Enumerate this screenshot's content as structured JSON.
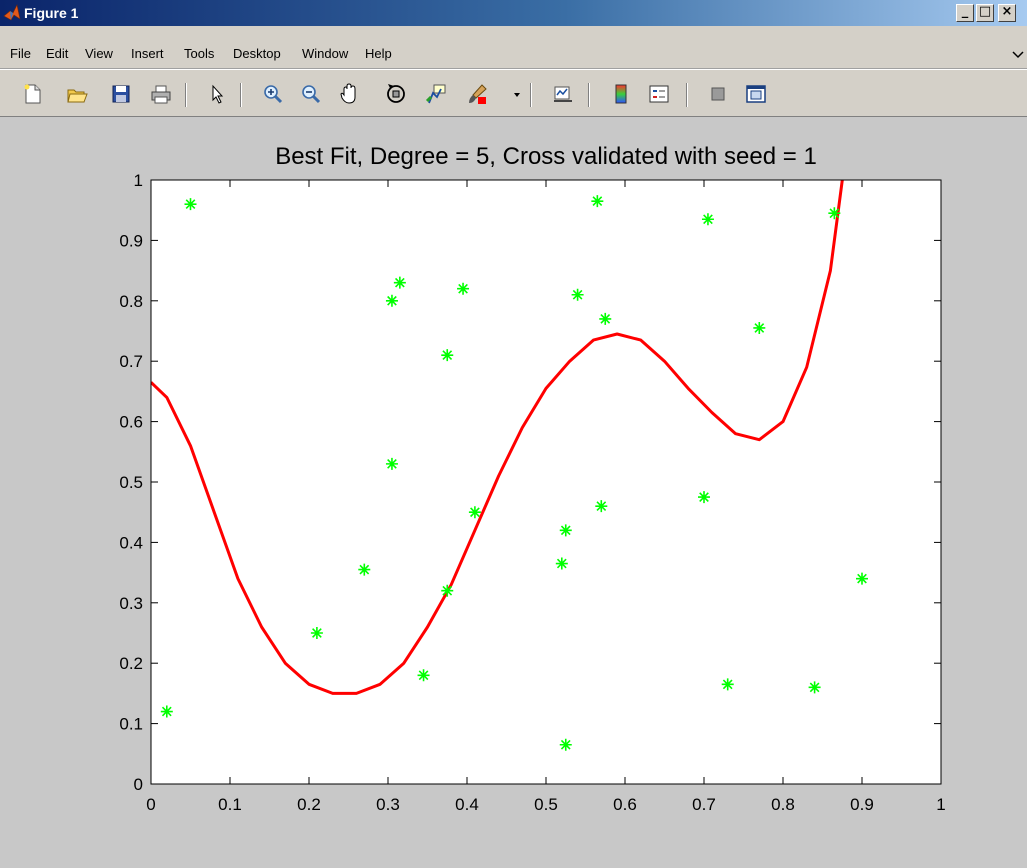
{
  "window": {
    "title": "Figure 1",
    "controls": {
      "minimize": "_",
      "maximize": "□",
      "close": "×"
    }
  },
  "menu": {
    "items": [
      {
        "label": "File"
      },
      {
        "label": "Edit"
      },
      {
        "label": "View"
      },
      {
        "label": "Insert"
      },
      {
        "label": "Tools"
      },
      {
        "label": "Desktop"
      },
      {
        "label": "Window"
      },
      {
        "label": "Help"
      }
    ]
  },
  "toolbar": {
    "buttons": [
      "new-figure-icon",
      "open-file-icon",
      "save-icon",
      "print-icon",
      "edit-plot-arrow-icon",
      "zoom-in-icon",
      "zoom-out-icon",
      "pan-hand-icon",
      "rotate-3d-icon",
      "data-cursor-icon",
      "brush-icon",
      "brush-dropdown-icon",
      "link-plot-icon",
      "insert-colorbar-icon",
      "insert-legend-icon",
      "hide-plot-tools-icon",
      "show-plot-tools-icon"
    ]
  },
  "chart_data": {
    "type": "scatter",
    "title": "Best Fit, Degree = 5, Cross validated with seed = 1",
    "xlabel": "",
    "ylabel": "",
    "xlim": [
      0,
      1
    ],
    "ylim": [
      0,
      1
    ],
    "xticks": [
      "0",
      "0.1",
      "0.2",
      "0.3",
      "0.4",
      "0.5",
      "0.6",
      "0.7",
      "0.8",
      "0.9",
      "1"
    ],
    "yticks": [
      "0",
      "0.1",
      "0.2",
      "0.3",
      "0.4",
      "0.5",
      "0.6",
      "0.7",
      "0.8",
      "0.9",
      "1"
    ],
    "grid": false,
    "series": [
      {
        "kind": "scatter",
        "color": "#00ff00",
        "marker": "asterisk",
        "points": [
          [
            0.02,
            0.12
          ],
          [
            0.05,
            0.96
          ],
          [
            0.21,
            0.25
          ],
          [
            0.27,
            0.355
          ],
          [
            0.305,
            0.8
          ],
          [
            0.315,
            0.83
          ],
          [
            0.305,
            0.53
          ],
          [
            0.345,
            0.18
          ],
          [
            0.375,
            0.32
          ],
          [
            0.375,
            0.71
          ],
          [
            0.395,
            0.82
          ],
          [
            0.41,
            0.45
          ],
          [
            0.52,
            0.365
          ],
          [
            0.525,
            0.42
          ],
          [
            0.525,
            0.065
          ],
          [
            0.54,
            0.81
          ],
          [
            0.565,
            0.965
          ],
          [
            0.57,
            0.46
          ],
          [
            0.575,
            0.77
          ],
          [
            0.7,
            0.475
          ],
          [
            0.705,
            0.935
          ],
          [
            0.73,
            0.165
          ],
          [
            0.77,
            0.755
          ],
          [
            0.84,
            0.16
          ],
          [
            0.865,
            0.945
          ],
          [
            0.9,
            0.34
          ]
        ]
      },
      {
        "kind": "line",
        "color": "#ff0000",
        "points": [
          [
            0.0,
            0.665
          ],
          [
            0.02,
            0.64
          ],
          [
            0.05,
            0.56
          ],
          [
            0.08,
            0.45
          ],
          [
            0.11,
            0.34
          ],
          [
            0.14,
            0.26
          ],
          [
            0.17,
            0.2
          ],
          [
            0.2,
            0.165
          ],
          [
            0.23,
            0.15
          ],
          [
            0.26,
            0.15
          ],
          [
            0.29,
            0.165
          ],
          [
            0.32,
            0.2
          ],
          [
            0.35,
            0.26
          ],
          [
            0.38,
            0.33
          ],
          [
            0.41,
            0.42
          ],
          [
            0.44,
            0.51
          ],
          [
            0.47,
            0.59
          ],
          [
            0.5,
            0.655
          ],
          [
            0.53,
            0.7
          ],
          [
            0.56,
            0.735
          ],
          [
            0.59,
            0.745
          ],
          [
            0.62,
            0.735
          ],
          [
            0.65,
            0.7
          ],
          [
            0.68,
            0.655
          ],
          [
            0.71,
            0.615
          ],
          [
            0.74,
            0.58
          ],
          [
            0.77,
            0.57
          ],
          [
            0.8,
            0.6
          ],
          [
            0.83,
            0.69
          ],
          [
            0.86,
            0.85
          ],
          [
            0.875,
            1.0
          ]
        ]
      }
    ]
  }
}
